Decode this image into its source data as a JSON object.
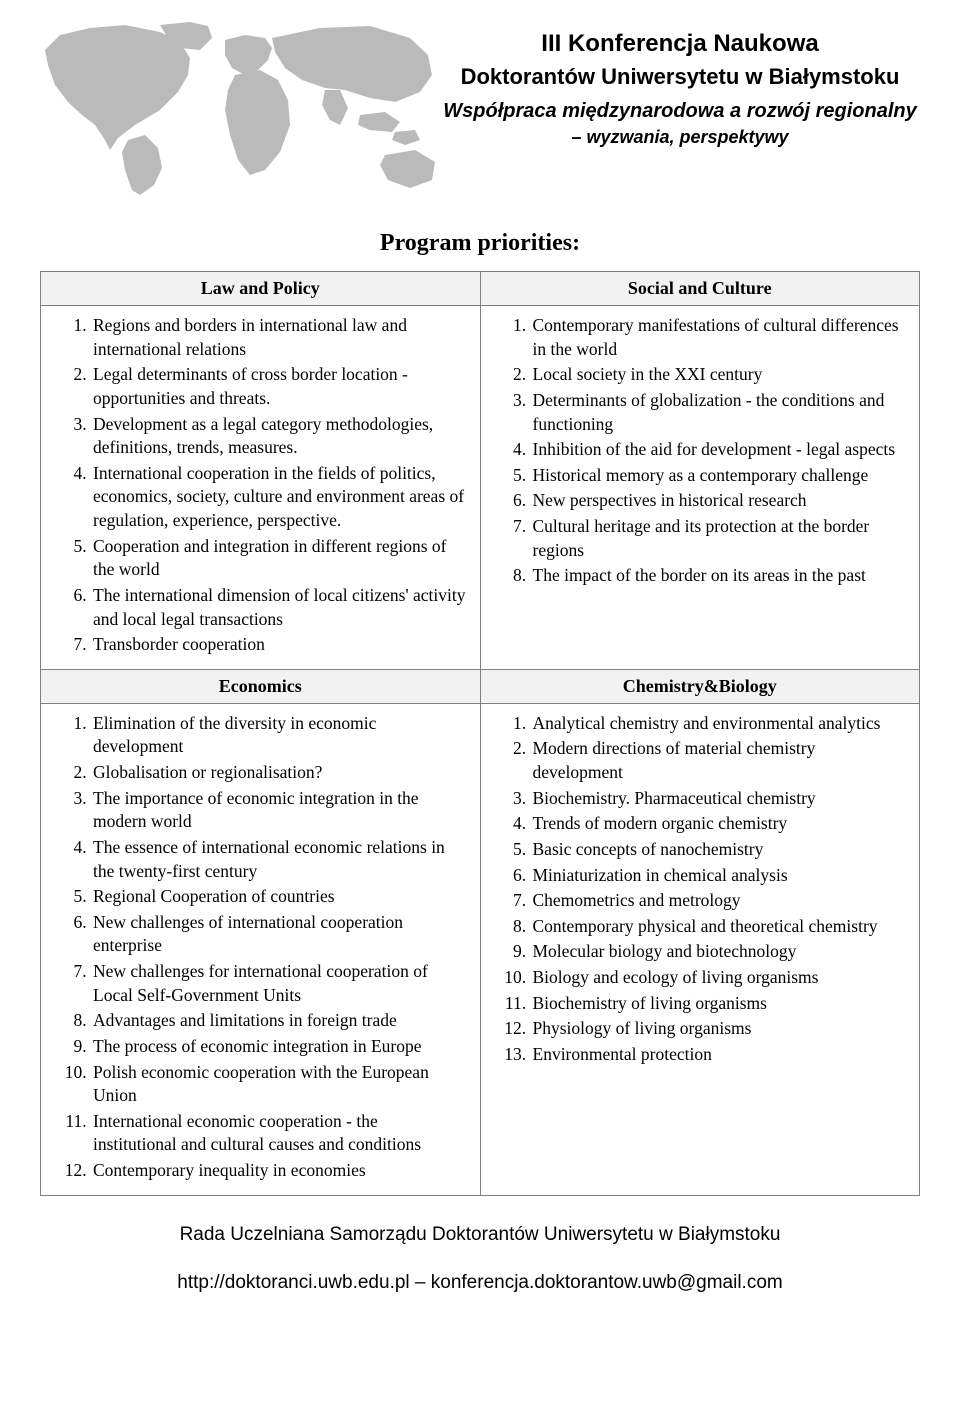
{
  "header": {
    "title1": "III Konferencja Naukowa",
    "title2": "Doktorantów Uniwersytetu w Białymstoku",
    "subtitle1": "Współpraca międzynarodowa a rozwój regionalny",
    "subtitle2": "– wyzwania, perspektywy"
  },
  "map_fill": "#bababa",
  "section_title": "Program priorities:",
  "header_bg": "#f2f2f2",
  "border_color": "#808080",
  "columns": {
    "top_left": {
      "title": "Law and Policy",
      "items": [
        "Regions and borders in international law and international relations",
        "Legal determinants of cross border location - opportunities and threats.",
        "Development as a legal category methodologies, definitions, trends, measures.",
        "International cooperation in the fields of politics, economics, society, culture and environment areas of regulation, experience, perspective.",
        "Cooperation and integration in different regions of the world",
        "The international dimension of local citizens' activity and local legal transactions",
        "Transborder cooperation"
      ]
    },
    "top_right": {
      "title": "Social and Culture",
      "items": [
        "Contemporary manifestations of cultural differences in the world",
        "Local society in the XXI century",
        "Determinants of globalization - the conditions and functioning",
        " Inhibition of the aid for development - legal aspects",
        "Historical memory as a contemporary challenge",
        "New perspectives in historical research",
        "Cultural heritage and its protection at the border regions",
        "The impact of the border on its areas in the past"
      ]
    },
    "bottom_left": {
      "title": "Economics",
      "items": [
        "Elimination of the diversity in economic development",
        "Globalisation or regionalisation?",
        "The importance of economic integration in the modern world",
        "The essence of international economic relations in the twenty-first century",
        "Regional Cooperation of countries",
        "New challenges of international cooperation enterprise",
        "New challenges for international cooperation of Local Self-Government Units",
        "Advantages and limitations in foreign trade",
        "The process of economic integration in Europe",
        "Polish economic cooperation with the European Union",
        "International economic cooperation - the institutional and cultural causes and conditions",
        "Contemporary inequality in economies"
      ]
    },
    "bottom_right": {
      "title": "Chemistry&Biology",
      "items": [
        "Analytical chemistry and environmental analytics",
        "Modern directions of material chemistry development",
        "Biochemistry. Pharmaceutical chemistry",
        "Trends of modern organic chemistry",
        "Basic concepts of nanochemistry",
        "Miniaturization in chemical analysis",
        "Chemometrics and metrology",
        "Contemporary physical and  theoretical chemistry",
        "Molecular biology and biotechnology",
        "Biology and ecology of living organisms",
        "Biochemistry of living organisms",
        "Physiology of living organisms",
        "Environmental protection"
      ]
    }
  },
  "footer": {
    "line1": "Rada Uczelniana Samorządu Doktorantów Uniwersytetu w Białymstoku",
    "line2": "http://doktoranci.uwb.edu.pl – konferencja.doktorantow.uwb@gmail.com"
  }
}
